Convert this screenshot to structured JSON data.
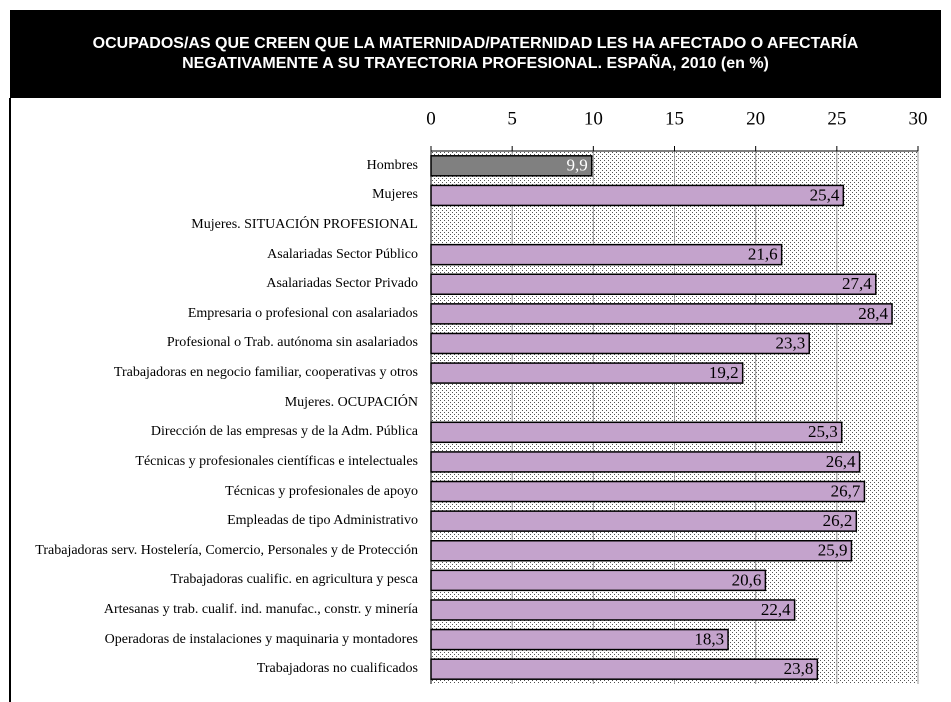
{
  "chart_data": {
    "type": "bar",
    "orientation": "horizontal",
    "title": "OCUPADOS/AS QUE CREEN QUE LA MATERNIDAD/PATERNIDAD LES HA AFECTADO O AFECTARÍA NEGATIVAMENTE A SU TRAYECTORIA PROFESIONAL. ESPAÑA, 2010 (en %)",
    "categories": [
      "Hombres",
      "Mujeres",
      "Mujeres. SITUACIÓN PROFESIONAL",
      "Asalariadas Sector Público",
      "Asalariadas Sector Privado",
      "Empresaria o profesional con asalariados",
      "Profesional o Trab. autónoma sin asalariados",
      "Trabajadoras en negocio familiar, cooperativas y otros",
      "Mujeres. OCUPACIÓN",
      "Dirección de las empresas y de la Adm. Pública",
      "Técnicas y profesionales científicas e intelectuales",
      "Técnicas y profesionales de apoyo",
      "Empleadas de tipo Administrativo",
      "Trabajadoras serv. Hostelería, Comercio, Personales y de Protección",
      "Trabajadoras cualific. en agricultura y pesca",
      "Artesanas y trab. cualif. ind. manufac., constr. y minería",
      "Operadoras de instalaciones y maquinaria y montadores",
      "Trabajadoras no cualificados"
    ],
    "values": [
      9.9,
      25.4,
      null,
      21.6,
      27.4,
      28.4,
      23.3,
      19.2,
      null,
      25.3,
      26.4,
      26.7,
      26.2,
      25.9,
      20.6,
      22.4,
      18.3,
      23.8
    ],
    "value_labels": [
      "9,9",
      "25,4",
      null,
      "21,6",
      "27,4",
      "28,4",
      "23,3",
      "19,2",
      null,
      "25,3",
      "26,4",
      "26,7",
      "26,2",
      "25,9",
      "20,6",
      "22,4",
      "18,3",
      "23,8"
    ],
    "colors": [
      "#808080",
      "#c4a3cc",
      "#c4a3cc",
      "#c4a3cc",
      "#c4a3cc",
      "#c4a3cc",
      "#c4a3cc",
      "#c4a3cc",
      "#c4a3cc",
      "#c4a3cc",
      "#c4a3cc",
      "#c4a3cc",
      "#c4a3cc",
      "#c4a3cc",
      "#c4a3cc",
      "#c4a3cc",
      "#c4a3cc",
      "#c4a3cc"
    ],
    "xlim": [
      0,
      30
    ],
    "xticks": [
      0,
      5,
      10,
      15,
      20,
      25,
      30
    ],
    "grid": true
  }
}
